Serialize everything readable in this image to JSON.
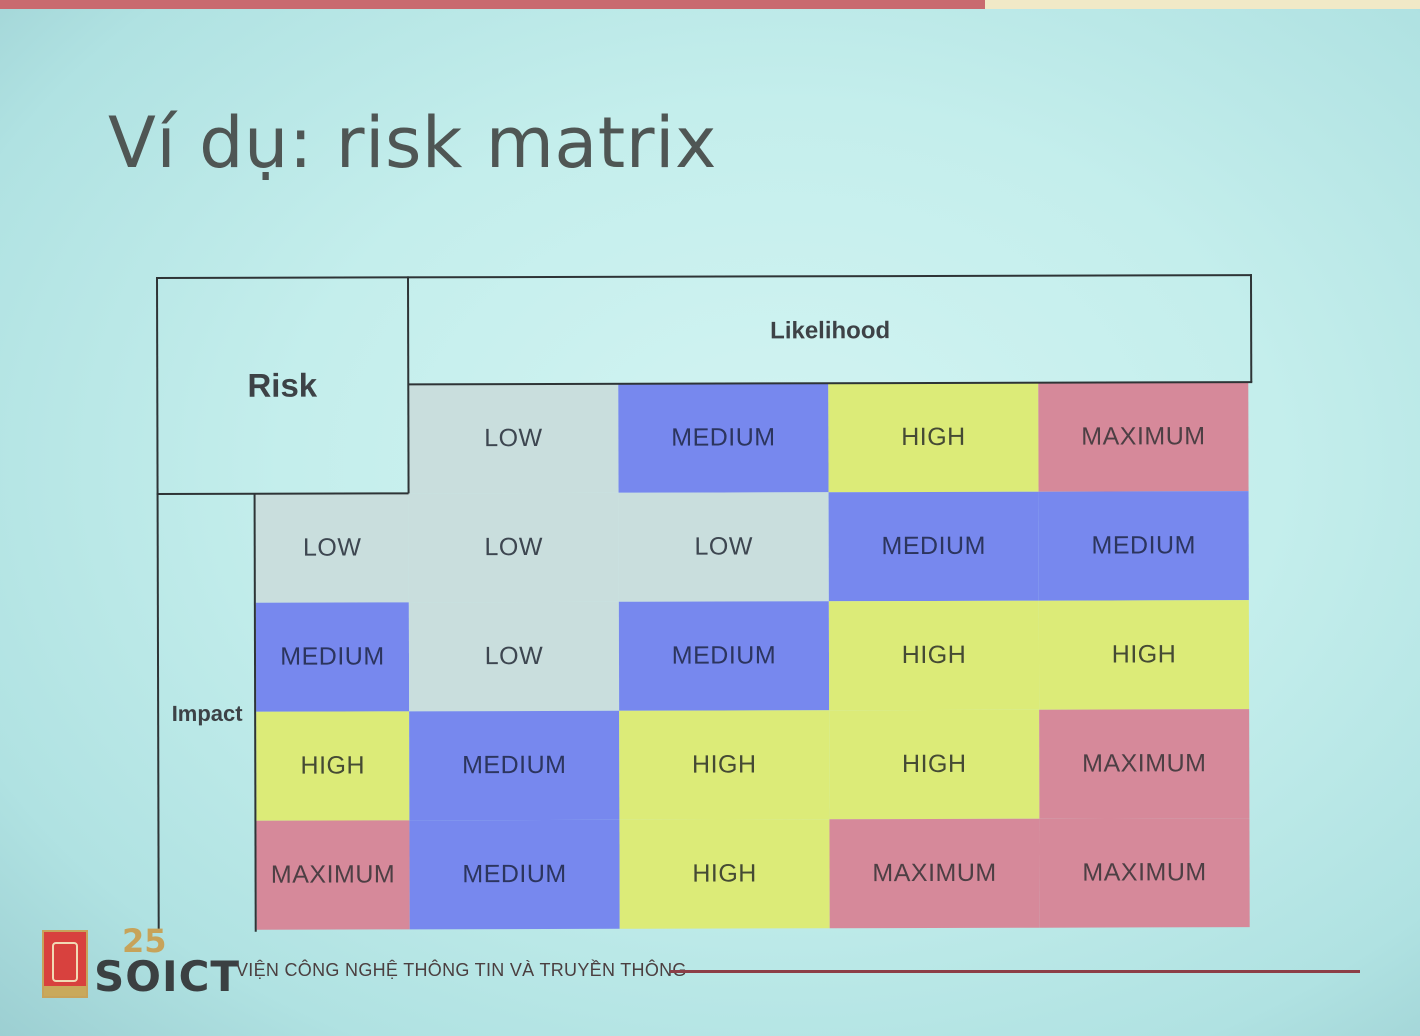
{
  "slide": {
    "title": "Ví dụ: risk matrix"
  },
  "matrix": {
    "corner_label": "Risk",
    "likelihood_label": "Likelihood",
    "impact_label": "Impact",
    "likelihood_levels": [
      "LOW",
      "MEDIUM",
      "HIGH",
      "MAXIMUM"
    ],
    "impact_levels": [
      "LOW",
      "MEDIUM",
      "HIGH",
      "MAXIMUM"
    ],
    "rows": [
      [
        "LOW",
        "LOW",
        "MEDIUM",
        "MEDIUM"
      ],
      [
        "LOW",
        "MEDIUM",
        "HIGH",
        "HIGH"
      ],
      [
        "MEDIUM",
        "HIGH",
        "HIGH",
        "MAXIMUM"
      ],
      [
        "MEDIUM",
        "HIGH",
        "MAXIMUM",
        "MAXIMUM"
      ]
    ],
    "colors": {
      "LOW": "#c9dedd",
      "MEDIUM": "#7788ee",
      "HIGH": "#dceb78",
      "MAXIMUM": "#d6899a"
    }
  },
  "footer": {
    "logo_number": "25",
    "logo_text": "SOICT",
    "institute_name": "VIỆN CÔNG NGHỆ THÔNG TIN VÀ TRUYỀN THÔNG"
  }
}
